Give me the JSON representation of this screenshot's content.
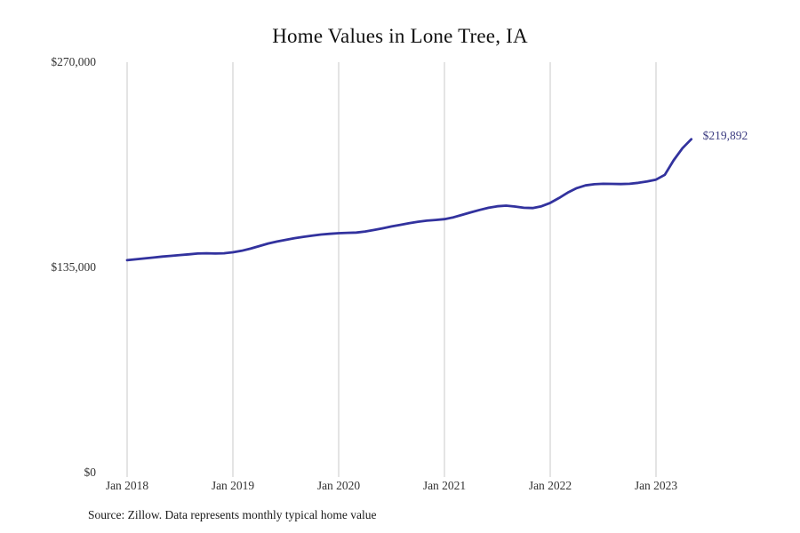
{
  "title": "Home Values in Lone Tree, IA",
  "source_note": "Source: Zillow. Data represents monthly typical home value",
  "annotation": {
    "label": "$219,892"
  },
  "colors": {
    "line": "#32329e",
    "grid": "#c9c9c9",
    "axis_text": "#333333",
    "annotation_text": "#3b3b80",
    "title_text": "#111111",
    "background": "#ffffff"
  },
  "chart_data": {
    "type": "line",
    "title": "Home Values in Lone Tree, IA",
    "xlabel": "",
    "ylabel": "",
    "frequency": "monthly",
    "start_month": "Jan 2018",
    "end_month": "May 2023",
    "x_tick_labels": [
      "Jan 2018",
      "Jan 2019",
      "Jan 2020",
      "Jan 2021",
      "Jan 2022",
      "Jan 2023"
    ],
    "y_ticks": [
      0,
      135000,
      270000
    ],
    "y_tick_labels": [
      "$0",
      "$135,000",
      "$270,000"
    ],
    "ylim": [
      0,
      270000
    ],
    "grid": "vertical-only",
    "legend": "none",
    "series": [
      {
        "name": "Monthly typical home value",
        "values": [
          140300,
          140900,
          141500,
          142100,
          142700,
          143200,
          143700,
          144200,
          144700,
          144900,
          144700,
          144900,
          145500,
          146500,
          147900,
          149600,
          151300,
          152600,
          153700,
          154800,
          155700,
          156500,
          157200,
          157700,
          158100,
          158300,
          158500,
          159200,
          160200,
          161300,
          162500,
          163600,
          164700,
          165600,
          166300,
          166800,
          167300,
          168500,
          170100,
          171800,
          173400,
          174800,
          175800,
          176200,
          175600,
          174800,
          174600,
          175800,
          178000,
          181200,
          184800,
          187700,
          189500,
          190300,
          190600,
          190500,
          190400,
          190600,
          191200,
          192100,
          193300,
          196500,
          206000,
          214000,
          219892
        ]
      }
    ],
    "last_point_label": "$219,892"
  }
}
